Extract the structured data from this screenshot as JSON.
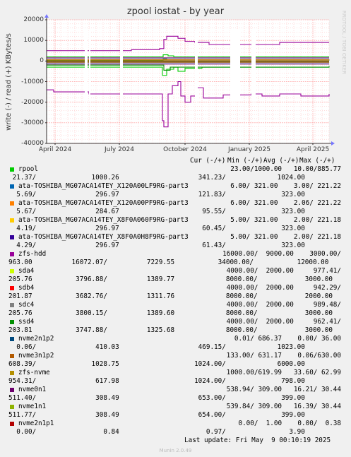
{
  "chart_data": {
    "type": "line",
    "title": "zpool iostat - by year",
    "ylabel": "write (-) / read (+) KBytes/s",
    "watermark": "RRDTOOL / TOBI OETIKER",
    "ylim": [
      -40000,
      20000
    ],
    "y_ticks": [
      "20000",
      "10000",
      "0",
      "-10000",
      "-20000",
      "-30000",
      "-40000"
    ],
    "x_ticks": [
      "April 2024",
      "July 2024",
      "October 2024",
      "January 2025",
      "April 2025"
    ],
    "grid": true,
    "series": [
      {
        "name": "zfs-hdd",
        "color": "#990099",
        "read": [
          [
            0,
            5000
          ],
          [
            100,
            5000
          ],
          [
            120,
            5500
          ],
          [
            160,
            6000
          ],
          [
            166,
            10500
          ],
          [
            170,
            12000
          ],
          [
            180,
            12000
          ],
          [
            186,
            11000
          ],
          [
            196,
            9500
          ],
          [
            210,
            9000
          ],
          [
            230,
            8000
          ],
          [
            305,
            8000
          ],
          [
            330,
            9000
          ],
          [
            400,
            9000
          ]
        ],
        "write": [
          [
            0,
            -14000
          ],
          [
            10,
            -15000
          ],
          [
            50,
            -15000
          ],
          [
            60,
            -16000
          ],
          [
            160,
            -16000
          ],
          [
            164,
            -29000
          ],
          [
            166,
            -32000
          ],
          [
            172,
            -16000
          ],
          [
            178,
            -12000
          ],
          [
            186,
            -10000
          ],
          [
            190,
            -17000
          ],
          [
            196,
            -20000
          ],
          [
            204,
            -17000
          ],
          [
            212,
            -13000
          ],
          [
            222,
            -18000
          ],
          [
            250,
            -16500
          ],
          [
            290,
            -16000
          ],
          [
            305,
            -17000
          ],
          [
            330,
            -16000
          ],
          [
            360,
            -17000
          ],
          [
            400,
            -16000
          ]
        ]
      },
      {
        "name": "rpool",
        "color": "#00cc00",
        "read": [
          [
            0,
            2000
          ],
          [
            160,
            2000
          ],
          [
            165,
            3000
          ],
          [
            172,
            2500
          ],
          [
            180,
            2000
          ],
          [
            400,
            2000
          ]
        ],
        "write": [
          [
            0,
            -3000
          ],
          [
            160,
            -3000
          ],
          [
            164,
            -7000
          ],
          [
            170,
            -4000
          ],
          [
            180,
            -3000
          ],
          [
            186,
            -5000
          ],
          [
            196,
            -3500
          ],
          [
            220,
            -3000
          ],
          [
            400,
            -3000
          ]
        ]
      },
      {
        "name": "nvme0n1",
        "color": "#660066",
        "read": [
          [
            0,
            1500
          ],
          [
            400,
            1500
          ]
        ],
        "write": [
          [
            0,
            -1500
          ],
          [
            400,
            -1500
          ]
        ]
      },
      {
        "name": "ssd4",
        "color": "#008f00",
        "read": [
          [
            0,
            300
          ],
          [
            165,
            1000
          ],
          [
            170,
            500
          ],
          [
            400,
            300
          ]
        ],
        "write": [
          [
            0,
            -2000
          ],
          [
            160,
            -2000
          ],
          [
            166,
            -4500
          ],
          [
            175,
            -3000
          ],
          [
            400,
            -2500
          ]
        ]
      },
      {
        "name": "ata-TOSHIBA_MG07ACA14TEY_X120A00LF9RG-part3",
        "color": "#0066b3",
        "read": [
          [
            0,
            800
          ],
          [
            400,
            800
          ]
        ],
        "write": [
          [
            0,
            -800
          ],
          [
            400,
            -800
          ]
        ]
      },
      {
        "name": "ata-TOSHIBA_MG07ACA14TEY_X120A00PF9RG-part3",
        "color": "#ff8000",
        "read": [
          [
            0,
            600
          ],
          [
            400,
            600
          ]
        ],
        "write": [
          [
            0,
            -600
          ],
          [
            400,
            -600
          ]
        ]
      },
      {
        "name": "zfs-nvme",
        "color": "#b8860b",
        "read": [
          [
            0,
            400
          ],
          [
            400,
            400
          ]
        ],
        "write": [
          [
            0,
            -400
          ],
          [
            400,
            -400
          ]
        ]
      }
    ],
    "gaps": [
      [
        54,
        58
      ],
      [
        60,
        62
      ],
      [
        104,
        108
      ],
      [
        210,
        214
      ],
      [
        260,
        274
      ],
      [
        290,
        296
      ]
    ],
    "legend_header": {
      "cur": "Cur (-/+)",
      "min": "Min (-/+)",
      "avg": "Avg (-/+)",
      "max": "Max (-/+)"
    },
    "legend": [
      {
        "name": "rpool",
        "color": "#00cc00",
        "r1": "23.00/1000.00   10.00/885.77",
        "r2": " 21.37/              1000.26                    341.23/             1024.00"
      },
      {
        "name": "ata-TOSHIBA_MG07ACA14TEY_X120A00LF9RG-part3",
        "color": "#0066b3",
        "r1": "6.00/ 321.00    3.00/ 221.22",
        "r2": "  5.69/               296.97                    121.83/              323.00"
      },
      {
        "name": "ata-TOSHIBA_MG07ACA14TEY_X120A00PF9RG-part3",
        "color": "#ff8000",
        "r1": "6.00/ 321.00    2.06/ 221.22",
        "r2": "  5.67/               284.67                     95.55/              323.00"
      },
      {
        "name": "ata-TOSHIBA_MG07ACA14TEY_X8F0A060F9RG-part3",
        "color": "#ffcc00",
        "r1": "5.00/ 321.00    2.00/ 221.18",
        "r2": "  4.19/               296.97                     60.45/              323.00"
      },
      {
        "name": "ata-TOSHIBA_MG07ACA14TEY_X8F0A0H8F9RG-part3",
        "color": "#330099",
        "r1": "5.00/ 321.00    2.00/ 221.18",
        "r2": "  4.29/               296.97                     61.43/              323.00"
      },
      {
        "name": "zfs-hdd",
        "color": "#990099",
        "r1": "16000.00/  9000.00    3000.00/",
        "r2": "963.00          16072.07/          7229.55           34000.00/           12000.00"
      },
      {
        "name": "sda4",
        "color": "#ccff00",
        "r1": "4000.00/  2000.00     977.41/",
        "r2": "205.76           3796.88/          1389.77             8000.00/            3000.00"
      },
      {
        "name": "sdb4",
        "color": "#ff0000",
        "r1": "4000.00/  2000.00     942.29/",
        "r2": "201.87           3682.76/          1311.76             8000.00/            2000.00"
      },
      {
        "name": "sdc4",
        "color": "#808080",
        "r1": "4000.00/  2000.00     989.48/",
        "r2": "205.76           3800.15/          1389.60             8000.00/            3000.00"
      },
      {
        "name": "ssd4",
        "color": "#008f00",
        "r1": "4000.00/  2000.00     962.41/",
        "r2": "203.81           3747.88/          1325.68             8000.00/            3000.00"
      },
      {
        "name": "nvme2n1p2",
        "color": "#00487d",
        "r1": "0.01/ 686.37    0.00/ 36.00",
        "r2": "  0.06/               410.03                    469.15/             1023.00"
      },
      {
        "name": "nvme3n1p2",
        "color": "#b35a00",
        "r1": "133.00/ 631.17    0.06/630.00",
        "r2": "608.39/              1028.75                   1024.00/             6000.00"
      },
      {
        "name": "zfs-nvme",
        "color": "#b38f00",
        "r1": "1000.00/619.99   33.60/ 62.99",
        "r2": "954.31/               617.98                   1024.00/              798.00"
      },
      {
        "name": "nvme0n1",
        "color": "#6b006b",
        "r1": "538.94/ 309.00   16.21/ 30.44",
        "r2": "511.40/               308.49                    653.00/              399.00"
      },
      {
        "name": "nvme1n1",
        "color": "#8fb300",
        "r1": "539.84/ 309.00   16.39/ 30.44",
        "r2": "511.77/               308.49                    654.00/              399.00"
      },
      {
        "name": "nvme2n1p1",
        "color": "#b30000",
        "r1": "0.00/  1.00    0.00/  0.38",
        "r2": "  0.00/                 0.84                      0.97/                3.90"
      }
    ],
    "last_update": "Last update: Fri May  9 00:10:19 2025",
    "footer": "Munin 2.0.49"
  }
}
